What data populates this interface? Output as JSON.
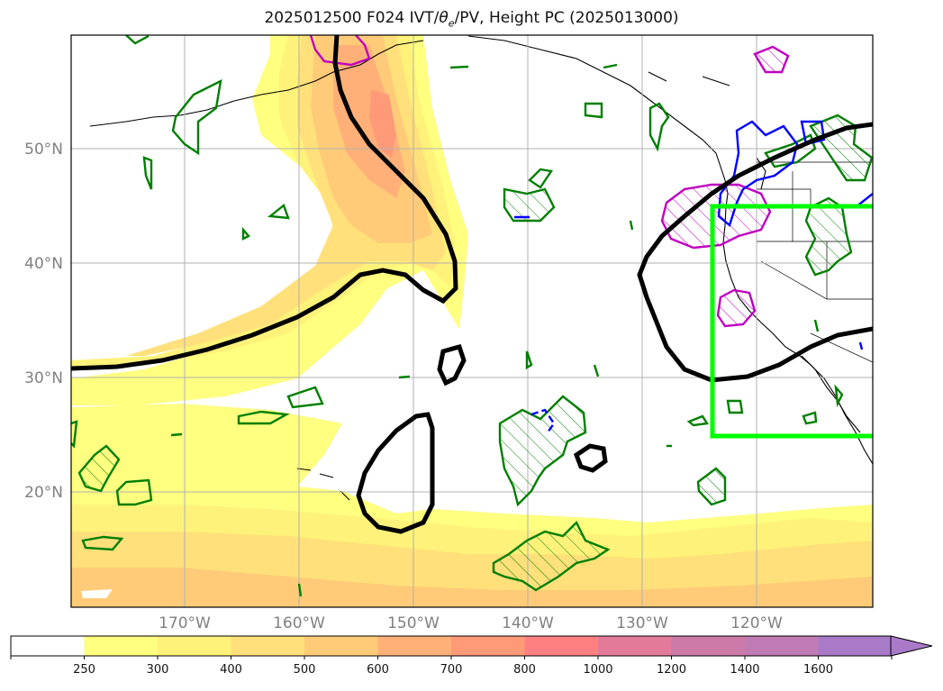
{
  "title": {
    "prefix": "2025012500 F024 IVT/",
    "theta_symbol": "θ",
    "theta_sub": "e",
    "suffix": "/PV, Height PC (2025013000)"
  },
  "lat_labels": [
    "50°N",
    "40°N",
    "30°N",
    "20°N"
  ],
  "lon_labels": [
    "170°W",
    "160°W",
    "150°W",
    "140°W",
    "130°W",
    "120°W"
  ],
  "colorbar": {
    "ticks": [
      "250",
      "300",
      "400",
      "500",
      "600",
      "700",
      "800",
      "1000",
      "1200",
      "1400",
      "1600"
    ],
    "colors": [
      "#ffffff",
      "#ffff80",
      "#fff27a",
      "#ffe07a",
      "#ffcb78",
      "#ffb078",
      "#ff9a78",
      "#ff8080",
      "#e47a9a",
      "#cc7aa8",
      "#c07ab4",
      "#a87ac8"
    ],
    "extend": "max"
  },
  "legend_colors": {
    "height_contour": "#000000",
    "theta_e_contour": "#007f00",
    "pv_negative": "#0000ff",
    "pv_positive": "#bf00bf",
    "domain_box": "#00ff00"
  }
}
